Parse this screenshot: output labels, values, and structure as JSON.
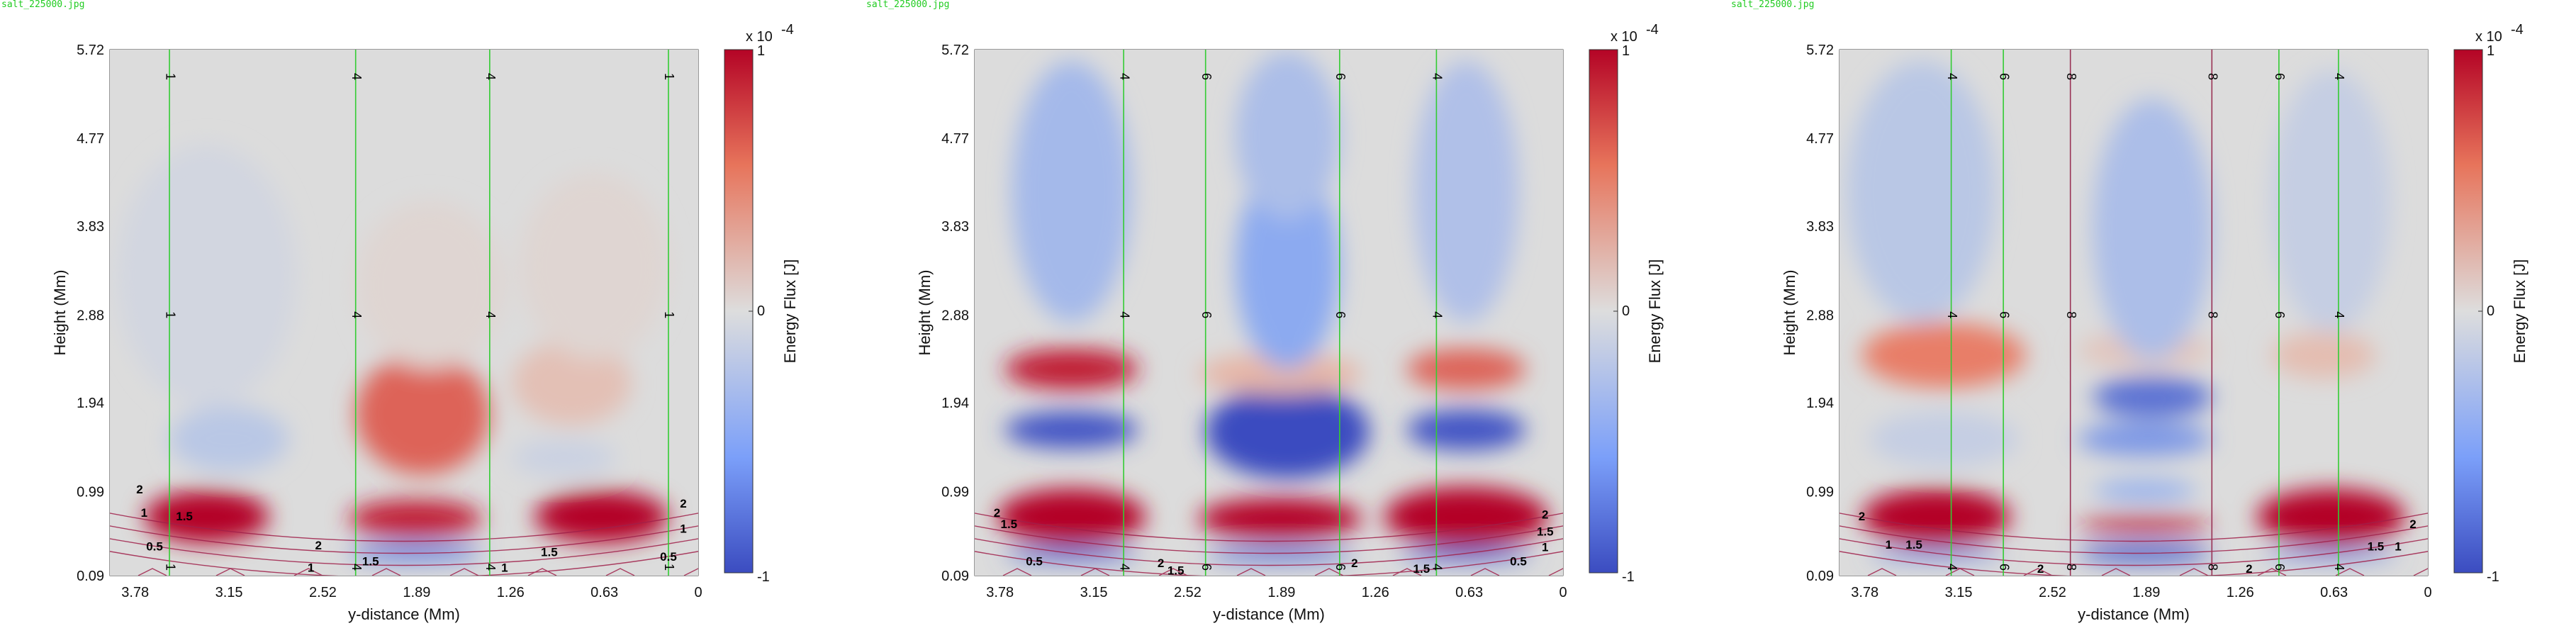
{
  "panels": [
    {
      "filename": "salt_225000.jpg",
      "xlabel": "y-distance (Mm)",
      "ylabel": "Height (Mm)",
      "xticks": [
        "3.78",
        "3.15",
        "2.52",
        "1.89",
        "1.26",
        "0.63",
        "0"
      ],
      "yticks": [
        "5.72",
        "4.77",
        "3.83",
        "2.88",
        "1.94",
        "0.99",
        "0.09"
      ],
      "colorbar": {
        "label": "Energy Flux [J]",
        "exponent": "x 10",
        "exp_power": "-4",
        "ticks": [
          "1",
          "0",
          "-1"
        ]
      },
      "field_lines": [
        {
          "y": 3.55,
          "label": "1",
          "color": "#33cc33"
        },
        {
          "y": 2.3,
          "label": "4",
          "color": "#33cc33"
        },
        {
          "y": 1.4,
          "label": "4",
          "color": "#33cc33"
        },
        {
          "y": 0.2,
          "label": "1",
          "color": "#33cc33"
        }
      ],
      "contour_labels": [
        {
          "text": "2",
          "x": 3.75,
          "y": 0.97
        },
        {
          "text": "1",
          "x": 3.72,
          "y": 0.72
        },
        {
          "text": "1.5",
          "x": 3.45,
          "y": 0.68
        },
        {
          "text": "0.5",
          "x": 3.65,
          "y": 0.36
        },
        {
          "text": "2",
          "x": 2.55,
          "y": 0.37
        },
        {
          "text": "1.5",
          "x": 2.2,
          "y": 0.2
        },
        {
          "text": "1",
          "x": 2.6,
          "y": 0.13
        },
        {
          "text": "1",
          "x": 1.3,
          "y": 0.13
        },
        {
          "text": "1.5",
          "x": 1.0,
          "y": 0.3
        },
        {
          "text": "0.5",
          "x": 0.2,
          "y": 0.25
        },
        {
          "text": "1",
          "x": 0.1,
          "y": 0.55
        },
        {
          "text": "2",
          "x": 0.1,
          "y": 0.82
        }
      ],
      "blobs": [
        {
          "x": 3.3,
          "y": 0.72,
          "rx": 0.42,
          "ry": 0.28,
          "v": 1.0
        },
        {
          "x": 0.65,
          "y": 0.72,
          "rx": 0.45,
          "ry": 0.28,
          "v": 1.0
        },
        {
          "x": 1.9,
          "y": 0.7,
          "rx": 0.45,
          "ry": 0.2,
          "v": 0.9
        },
        {
          "x": 1.9,
          "y": 0.34,
          "rx": 0.45,
          "ry": 0.1,
          "v": -0.7
        },
        {
          "x": 1.85,
          "y": 1.82,
          "rx": 0.45,
          "ry": 0.65,
          "v": 0.65
        },
        {
          "x": 0.85,
          "y": 2.15,
          "rx": 0.4,
          "ry": 0.45,
          "v": 0.18
        },
        {
          "x": 3.15,
          "y": 1.55,
          "rx": 0.4,
          "ry": 0.35,
          "v": -0.22
        },
        {
          "x": 0.9,
          "y": 1.35,
          "rx": 0.35,
          "ry": 0.2,
          "v": -0.12
        },
        {
          "x": 3.3,
          "y": 3.3,
          "rx": 0.6,
          "ry": 1.4,
          "v": -0.07
        },
        {
          "x": 1.8,
          "y": 3.2,
          "rx": 0.5,
          "ry": 0.9,
          "v": 0.05
        },
        {
          "x": 0.7,
          "y": 3.4,
          "rx": 0.5,
          "ry": 1.0,
          "v": 0.05
        }
      ]
    },
    {
      "filename": "salt_225000.jpg",
      "xlabel": "y-distance (Mm)",
      "ylabel": "Height (Mm)",
      "xticks": [
        "3.78",
        "3.15",
        "2.52",
        "1.89",
        "1.26",
        "0.63",
        "0"
      ],
      "yticks": [
        "5.72",
        "4.77",
        "3.83",
        "2.88",
        "1.94",
        "0.99",
        "0.09"
      ],
      "colorbar": {
        "label": "Energy Flux [J]",
        "exponent": "x 10",
        "exp_power": "-4",
        "ticks": [
          "1",
          "0",
          "-1"
        ]
      },
      "field_lines": [
        {
          "y": 2.95,
          "label": "4",
          "color": "#33cc33"
        },
        {
          "y": 2.4,
          "label": "6",
          "color": "#33cc33"
        },
        {
          "y": 1.5,
          "label": "6",
          "color": "#33cc33"
        },
        {
          "y": 0.85,
          "label": "4",
          "color": "#33cc33"
        }
      ],
      "contour_labels": [
        {
          "text": "2",
          "x": 3.8,
          "y": 0.72
        },
        {
          "text": "1.5",
          "x": 3.72,
          "y": 0.6
        },
        {
          "text": "0.5",
          "x": 3.55,
          "y": 0.2
        },
        {
          "text": "2",
          "x": 2.7,
          "y": 0.18
        },
        {
          "text": "1.5",
          "x": 2.6,
          "y": 0.1
        },
        {
          "text": "2",
          "x": 1.4,
          "y": 0.18
        },
        {
          "text": "1.5",
          "x": 0.95,
          "y": 0.12
        },
        {
          "text": "0.5",
          "x": 0.3,
          "y": 0.2
        },
        {
          "text": "1",
          "x": 0.12,
          "y": 0.35
        },
        {
          "text": "1.5",
          "x": 0.12,
          "y": 0.52
        },
        {
          "text": "2",
          "x": 0.12,
          "y": 0.7
        }
      ],
      "blobs": [
        {
          "x": 3.3,
          "y": 0.72,
          "rx": 0.5,
          "ry": 0.3,
          "v": 1.0
        },
        {
          "x": 1.9,
          "y": 0.7,
          "rx": 0.55,
          "ry": 0.22,
          "v": 1.0
        },
        {
          "x": 0.65,
          "y": 0.72,
          "rx": 0.55,
          "ry": 0.32,
          "v": 1.0
        },
        {
          "x": 3.3,
          "y": 0.32,
          "rx": 0.45,
          "ry": 0.08,
          "v": -0.8
        },
        {
          "x": 1.9,
          "y": 0.32,
          "rx": 0.5,
          "ry": 0.08,
          "v": -0.8
        },
        {
          "x": 0.65,
          "y": 0.32,
          "rx": 0.45,
          "ry": 0.08,
          "v": -0.8
        },
        {
          "x": 3.3,
          "y": 1.65,
          "rx": 0.45,
          "ry": 0.2,
          "v": -0.95
        },
        {
          "x": 1.85,
          "y": 1.63,
          "rx": 0.55,
          "ry": 0.5,
          "v": -1.0
        },
        {
          "x": 0.65,
          "y": 1.65,
          "rx": 0.4,
          "ry": 0.22,
          "v": -0.95
        },
        {
          "x": 3.3,
          "y": 2.3,
          "rx": 0.45,
          "ry": 0.22,
          "v": 0.9
        },
        {
          "x": 1.9,
          "y": 2.25,
          "rx": 0.55,
          "ry": 0.22,
          "v": 0.25
        },
        {
          "x": 0.65,
          "y": 2.3,
          "rx": 0.4,
          "ry": 0.22,
          "v": 0.65
        },
        {
          "x": 3.3,
          "y": 4.2,
          "rx": 0.4,
          "ry": 1.4,
          "v": -0.35
        },
        {
          "x": 1.85,
          "y": 3.4,
          "rx": 0.35,
          "ry": 1.1,
          "v": -0.5
        },
        {
          "x": 1.85,
          "y": 4.8,
          "rx": 0.35,
          "ry": 0.9,
          "v": -0.3
        },
        {
          "x": 0.65,
          "y": 4.2,
          "rx": 0.35,
          "ry": 1.4,
          "v": -0.28
        }
      ]
    },
    {
      "filename": "salt_225000.jpg",
      "xlabel": "y-distance (Mm)",
      "ylabel": "Height (Mm)",
      "xticks": [
        "3.78",
        "3.15",
        "2.52",
        "1.89",
        "1.26",
        "0.63",
        "0"
      ],
      "yticks": [
        "5.72",
        "4.77",
        "3.83",
        "2.88",
        "1.94",
        "0.99",
        "0.09"
      ],
      "colorbar": {
        "label": "Energy Flux [J]",
        "exponent": "x 10",
        "exp_power": "-4",
        "ticks": [
          "1",
          "0",
          "-1"
        ]
      },
      "field_lines": [
        {
          "y": 3.2,
          "label": "4",
          "color": "#33cc33"
        },
        {
          "y": 2.85,
          "label": "6",
          "color": "#33cc33"
        },
        {
          "y": 2.4,
          "label": "8",
          "color": "#993355"
        },
        {
          "y": 1.45,
          "label": "8",
          "color": "#993355"
        },
        {
          "y": 1.0,
          "label": "6",
          "color": "#33cc33"
        },
        {
          "y": 0.6,
          "label": "4",
          "color": "#33cc33"
        }
      ],
      "contour_labels": [
        {
          "text": "2",
          "x": 3.8,
          "y": 0.68
        },
        {
          "text": "1",
          "x": 3.62,
          "y": 0.38
        },
        {
          "text": "1.5",
          "x": 3.45,
          "y": 0.38
        },
        {
          "text": "2",
          "x": 2.6,
          "y": 0.12
        },
        {
          "text": "2",
          "x": 1.2,
          "y": 0.12
        },
        {
          "text": "1.5",
          "x": 0.35,
          "y": 0.36
        },
        {
          "text": "1",
          "x": 0.2,
          "y": 0.36
        },
        {
          "text": "2",
          "x": 0.1,
          "y": 0.6
        }
      ],
      "blobs": [
        {
          "x": 3.3,
          "y": 0.72,
          "rx": 0.5,
          "ry": 0.3,
          "v": 1.0
        },
        {
          "x": 0.65,
          "y": 0.72,
          "rx": 0.5,
          "ry": 0.3,
          "v": 1.0
        },
        {
          "x": 1.9,
          "y": 0.64,
          "rx": 0.45,
          "ry": 0.08,
          "v": 0.95
        },
        {
          "x": 1.9,
          "y": 0.33,
          "rx": 0.45,
          "ry": 0.1,
          "v": -0.9
        },
        {
          "x": 3.3,
          "y": 0.32,
          "rx": 0.45,
          "ry": 0.06,
          "v": -0.7
        },
        {
          "x": 0.65,
          "y": 0.32,
          "rx": 0.45,
          "ry": 0.06,
          "v": -0.7
        },
        {
          "x": 1.9,
          "y": 1.0,
          "rx": 0.35,
          "ry": 0.1,
          "v": -0.5
        },
        {
          "x": 1.9,
          "y": 1.55,
          "rx": 0.45,
          "ry": 0.18,
          "v": -0.6
        },
        {
          "x": 1.85,
          "y": 2.0,
          "rx": 0.4,
          "ry": 0.22,
          "v": -0.8
        },
        {
          "x": 3.25,
          "y": 2.45,
          "rx": 0.55,
          "ry": 0.35,
          "v": 0.55
        },
        {
          "x": 0.7,
          "y": 2.45,
          "rx": 0.35,
          "ry": 0.25,
          "v": 0.2
        },
        {
          "x": 3.25,
          "y": 1.55,
          "rx": 0.5,
          "ry": 0.3,
          "v": -0.15
        },
        {
          "x": 1.9,
          "y": 2.5,
          "rx": 0.45,
          "ry": 0.2,
          "v": 0.15
        },
        {
          "x": 3.4,
          "y": 4.2,
          "rx": 0.5,
          "ry": 1.4,
          "v": -0.22
        },
        {
          "x": 1.85,
          "y": 3.8,
          "rx": 0.4,
          "ry": 1.4,
          "v": -0.3
        },
        {
          "x": 0.65,
          "y": 4.1,
          "rx": 0.4,
          "ry": 1.4,
          "v": -0.15
        }
      ]
    }
  ],
  "chart_data": [
    {
      "type": "heatmap",
      "xlabel": "y-distance (Mm)",
      "ylabel": "Height (Mm)",
      "colorbar_label": "Energy Flux [J]",
      "colorbar_scale": "x 10^-4",
      "clim": [
        -1,
        1
      ],
      "xlim": [
        3.95,
        0
      ],
      "ylim": [
        0.09,
        5.72
      ],
      "field_line_labels": [
        "1",
        "4",
        "4",
        "1"
      ]
    },
    {
      "type": "heatmap",
      "xlabel": "y-distance (Mm)",
      "ylabel": "Height (Mm)",
      "colorbar_label": "Energy Flux [J]",
      "colorbar_scale": "x 10^-4",
      "clim": [
        -1,
        1
      ],
      "xlim": [
        3.95,
        0
      ],
      "ylim": [
        0.09,
        5.72
      ],
      "field_line_labels": [
        "4",
        "6",
        "6",
        "4"
      ]
    },
    {
      "type": "heatmap",
      "xlabel": "y-distance (Mm)",
      "ylabel": "Height (Mm)",
      "colorbar_label": "Energy Flux [J]",
      "colorbar_scale": "x 10^-4",
      "clim": [
        -1,
        1
      ],
      "xlim": [
        3.95,
        0
      ],
      "ylim": [
        0.09,
        5.72
      ],
      "field_line_labels": [
        "4",
        "6",
        "8",
        "8",
        "6",
        "4"
      ]
    }
  ]
}
